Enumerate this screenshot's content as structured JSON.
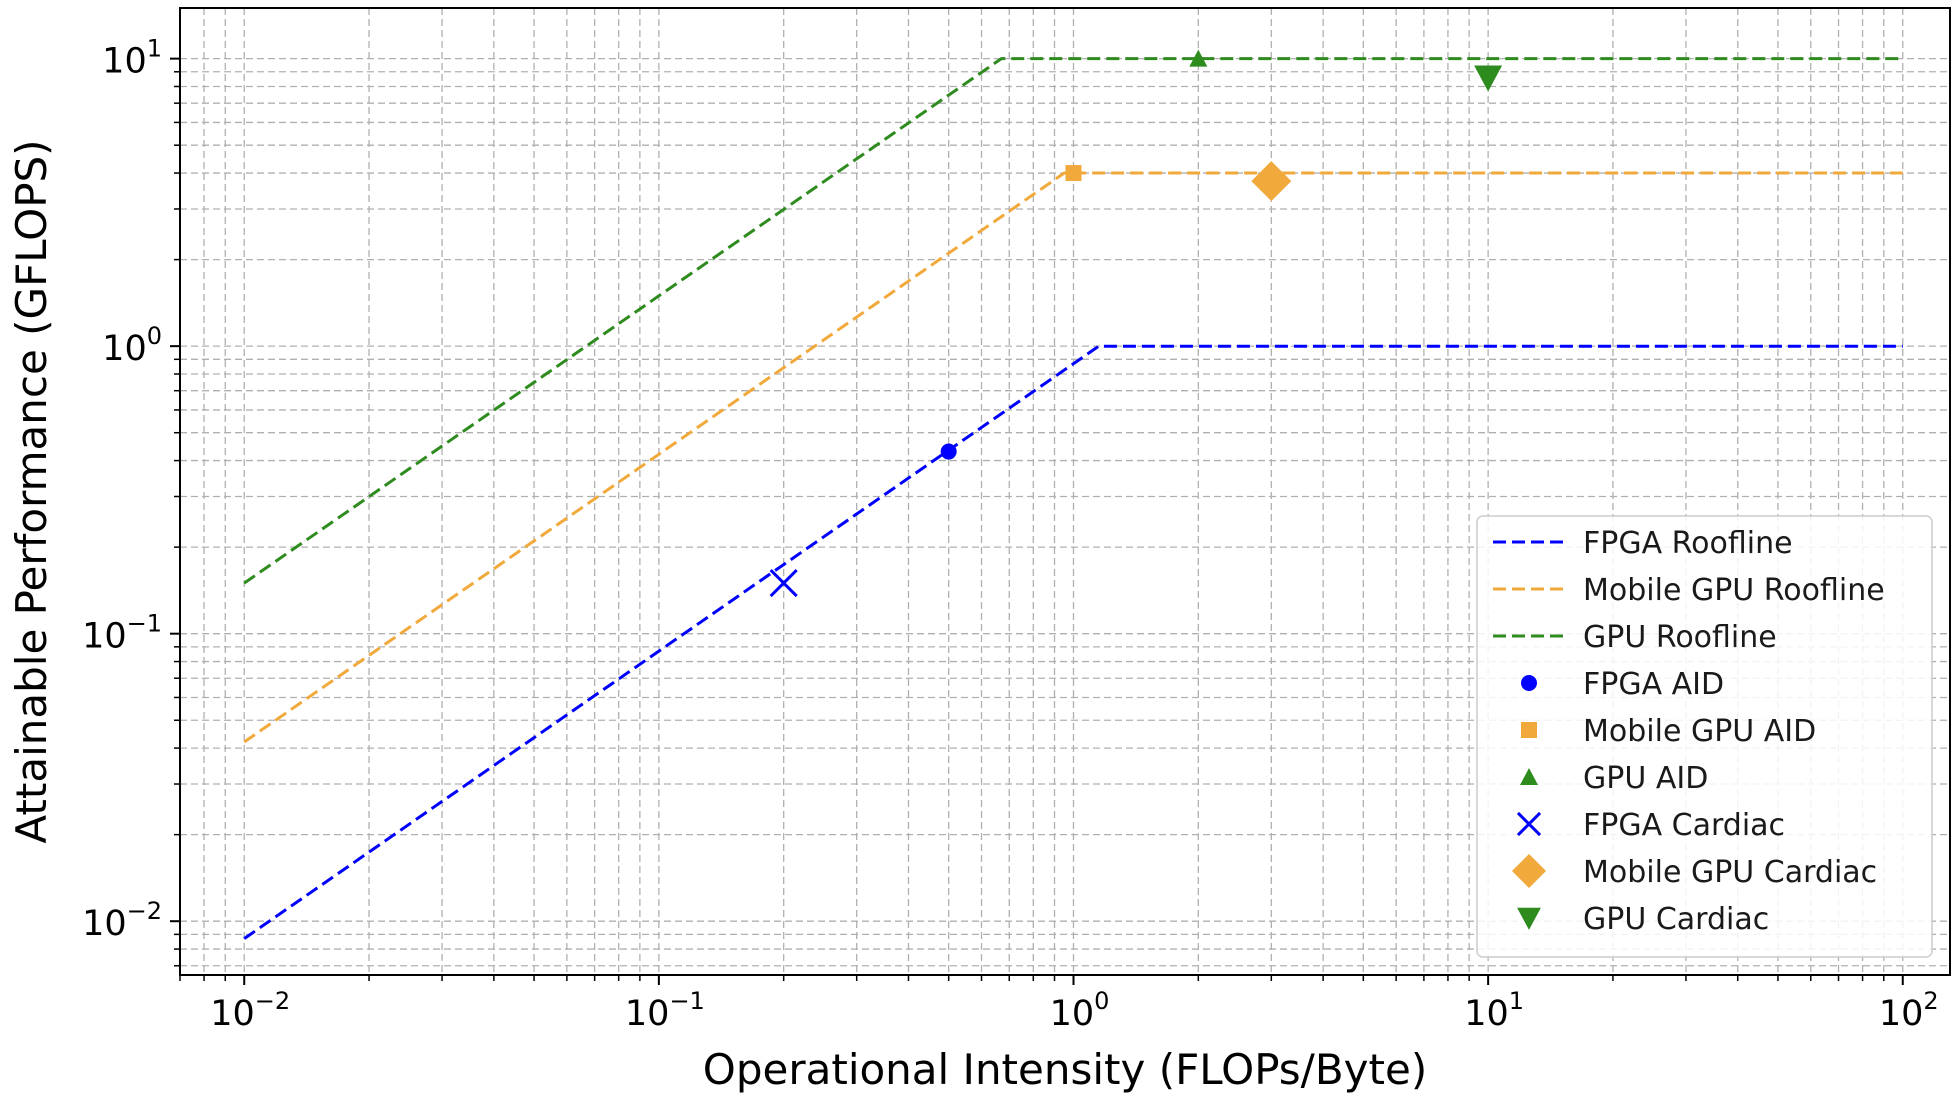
{
  "chart_data": {
    "type": "line",
    "title": "",
    "xlabel": "Operational Intensity (FLOPs/Byte)",
    "ylabel": "Attainable Performance (GFLOPS)",
    "xscale": "log",
    "yscale": "log",
    "xlim": [
      0.007,
      130
    ],
    "ylim": [
      0.0065,
      15
    ],
    "grid": true,
    "xticks": [
      {
        "value": 0.01,
        "base": "10",
        "exp": "−2"
      },
      {
        "value": 0.1,
        "base": "10",
        "exp": "−1"
      },
      {
        "value": 1,
        "base": "10",
        "exp": "0"
      },
      {
        "value": 10,
        "base": "10",
        "exp": "1"
      },
      {
        "value": 100,
        "base": "10",
        "exp": "2"
      }
    ],
    "yticks": [
      {
        "value": 0.01,
        "base": "10",
        "exp": "−2"
      },
      {
        "value": 0.1,
        "base": "10",
        "exp": "−1"
      },
      {
        "value": 1,
        "base": "10",
        "exp": "0"
      },
      {
        "value": 10,
        "base": "10",
        "exp": "1"
      }
    ],
    "legend_position": "lower right",
    "lines": [
      {
        "name": "FPGA Roofline",
        "color": "#0000ff",
        "x": [
          0.01,
          1.15,
          100
        ],
        "y": [
          0.0087,
          1.0,
          1.0
        ]
      },
      {
        "name": "Mobile GPU Roofline",
        "color": "#f2a93b",
        "x": [
          0.01,
          0.95,
          100
        ],
        "y": [
          0.042,
          4.0,
          4.0
        ]
      },
      {
        "name": "GPU Roofline",
        "color": "#2e8b1e",
        "x": [
          0.01,
          0.67,
          100
        ],
        "y": [
          0.15,
          10.0,
          10.0
        ]
      }
    ],
    "points": [
      {
        "name": "FPGA AID",
        "color": "#0000ff",
        "marker": "circle",
        "size": "small",
        "x": 0.5,
        "y": 0.43
      },
      {
        "name": "Mobile GPU AID",
        "color": "#f2a93b",
        "marker": "square",
        "size": "small",
        "x": 1.0,
        "y": 4.0
      },
      {
        "name": "GPU AID",
        "color": "#2e8b1e",
        "marker": "triangle-up",
        "size": "small",
        "x": 2.0,
        "y": 10.0
      },
      {
        "name": "FPGA Cardiac",
        "color": "#0000ff",
        "marker": "x",
        "size": "large",
        "x": 0.2,
        "y": 0.15
      },
      {
        "name": "Mobile GPU Cardiac",
        "color": "#f2a93b",
        "marker": "diamond",
        "size": "large",
        "x": 3.0,
        "y": 3.75
      },
      {
        "name": "GPU Cardiac",
        "color": "#2e8b1e",
        "marker": "triangle-down",
        "size": "large",
        "x": 10.0,
        "y": 8.6
      }
    ]
  }
}
